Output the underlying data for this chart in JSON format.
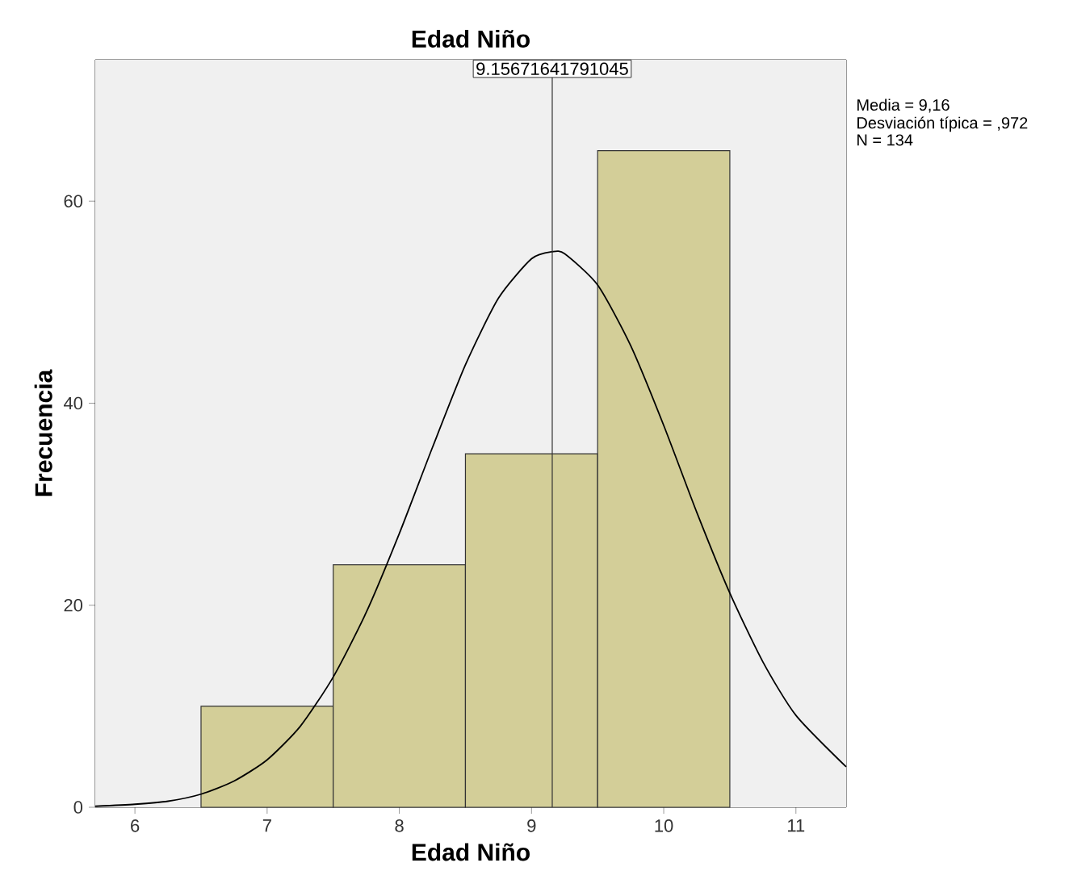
{
  "chart_data": {
    "type": "histogram",
    "title": "Edad Niño",
    "xlabel": "Edad Niño",
    "ylabel": "Frecuencia",
    "series": [
      {
        "bins": [
          6.5,
          7.5,
          8.5,
          9.5,
          10.5
        ],
        "values": [
          10,
          24,
          35,
          65
        ],
        "color": "#d3ce98"
      },
      {
        "type": "line",
        "x": [
          5.7,
          6.0,
          6.25,
          6.5,
          6.75,
          7.0,
          7.25,
          7.5,
          7.75,
          8.0,
          8.25,
          8.5,
          8.75,
          9.0,
          9.157,
          9.25,
          9.5,
          9.75,
          10.0,
          10.25,
          10.5,
          10.75,
          11.0,
          11.38
        ],
        "values": [
          0.1,
          0.3,
          0.6,
          1.3,
          2.6,
          4.7,
          8.0,
          12.9,
          19.3,
          27.1,
          35.6,
          43.8,
          50.4,
          54.3,
          55.0,
          54.8,
          51.7,
          45.7,
          37.8,
          29.2,
          21.2,
          14.4,
          9.1,
          4.0
        ],
        "color": "#000000"
      }
    ],
    "xlim": [
      5.7,
      11.38
    ],
    "ylim": [
      0,
      74
    ],
    "xticks": [
      6,
      7,
      8,
      9,
      10,
      11
    ],
    "yticks": [
      0,
      20,
      40,
      60
    ],
    "ref_lines": [
      {
        "axis": "x",
        "value": 9.15671641791045,
        "label": "9.15671641791045"
      }
    ],
    "annotations": [
      "Media = 9,16",
      "Desviación típica = ,972",
      "N = 134"
    ]
  }
}
